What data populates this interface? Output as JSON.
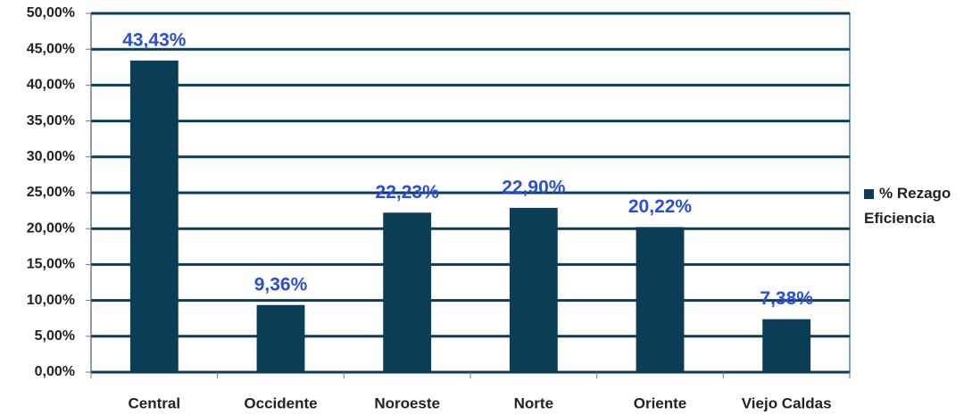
{
  "chart_data": {
    "type": "bar",
    "categories": [
      "Central",
      "Occidente",
      "Noroeste",
      "Norte",
      "Oriente",
      "Viejo Caldas"
    ],
    "series": [
      {
        "name": "% Rezago Eficiencia",
        "color": "#0b3d57",
        "values": [
          43.43,
          9.36,
          22.23,
          22.9,
          20.22,
          7.38
        ],
        "value_labels": [
          "43,43%",
          "9,36%",
          "22,23%",
          "22,90%",
          "20,22%",
          "7,38%"
        ]
      }
    ],
    "ylim": [
      0,
      50
    ],
    "yticks": [
      {
        "value": 0,
        "label": "0,00%"
      },
      {
        "value": 5,
        "label": "5,00%"
      },
      {
        "value": 10,
        "label": "10,00%"
      },
      {
        "value": 15,
        "label": "15,00%"
      },
      {
        "value": 20,
        "label": "20,00%"
      },
      {
        "value": 25,
        "label": "25,00%"
      },
      {
        "value": 30,
        "label": "30,00%"
      },
      {
        "value": 35,
        "label": "35,00%"
      },
      {
        "value": 40,
        "label": "40,00%"
      },
      {
        "value": 45,
        "label": "45,00%"
      },
      {
        "value": 50,
        "label": "50,00%"
      }
    ],
    "grid": true,
    "legend": "right"
  }
}
